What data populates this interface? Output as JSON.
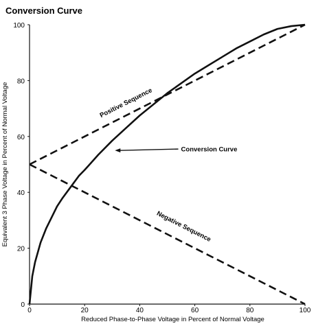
{
  "chart_data": {
    "type": "line",
    "title": "Conversion Curve",
    "xlabel": "Reduced Phase-to-Phase Voltage in Percent of Normal Voltage",
    "ylabel": "Equivalent 3 Phase Voltage in Percent of Normal Voltage",
    "xlim": [
      0,
      100
    ],
    "ylim": [
      0,
      100
    ],
    "x_ticks": [
      0,
      20,
      40,
      60,
      80,
      100
    ],
    "y_ticks": [
      0,
      20,
      40,
      60,
      80,
      100
    ],
    "grid": false,
    "legend": "none",
    "series": [
      {
        "name": "Positive Sequence",
        "style": "dashed",
        "x": [
          0,
          100
        ],
        "y": [
          50,
          100
        ]
      },
      {
        "name": "Negative Sequence",
        "style": "dashed",
        "x": [
          0,
          100
        ],
        "y": [
          50,
          0
        ]
      },
      {
        "name": "Conversion Curve",
        "style": "solid",
        "x": [
          0,
          1,
          2,
          4,
          6,
          8,
          10,
          12,
          15,
          18,
          20,
          25,
          30,
          35,
          40,
          45,
          50,
          55,
          60,
          65,
          70,
          75,
          80,
          85,
          90,
          95,
          100
        ],
        "y": [
          0,
          10,
          15,
          22,
          27,
          31,
          35,
          38,
          42,
          46,
          48,
          53.5,
          58.5,
          63,
          67.5,
          71.5,
          75.5,
          79,
          82.5,
          85.5,
          88.5,
          91.5,
          94,
          96.5,
          98.5,
          99.5,
          100
        ]
      }
    ],
    "annotations": [
      {
        "text": "Positive Sequence",
        "x": 26,
        "y": 66,
        "series": "Positive Sequence"
      },
      {
        "text": "Negative Sequence",
        "x": 46,
        "y": 32,
        "series": "Negative Sequence"
      },
      {
        "text": "Conversion Curve",
        "x": 55,
        "y": 55.5,
        "arrow_to": [
          30,
          55
        ]
      }
    ]
  }
}
